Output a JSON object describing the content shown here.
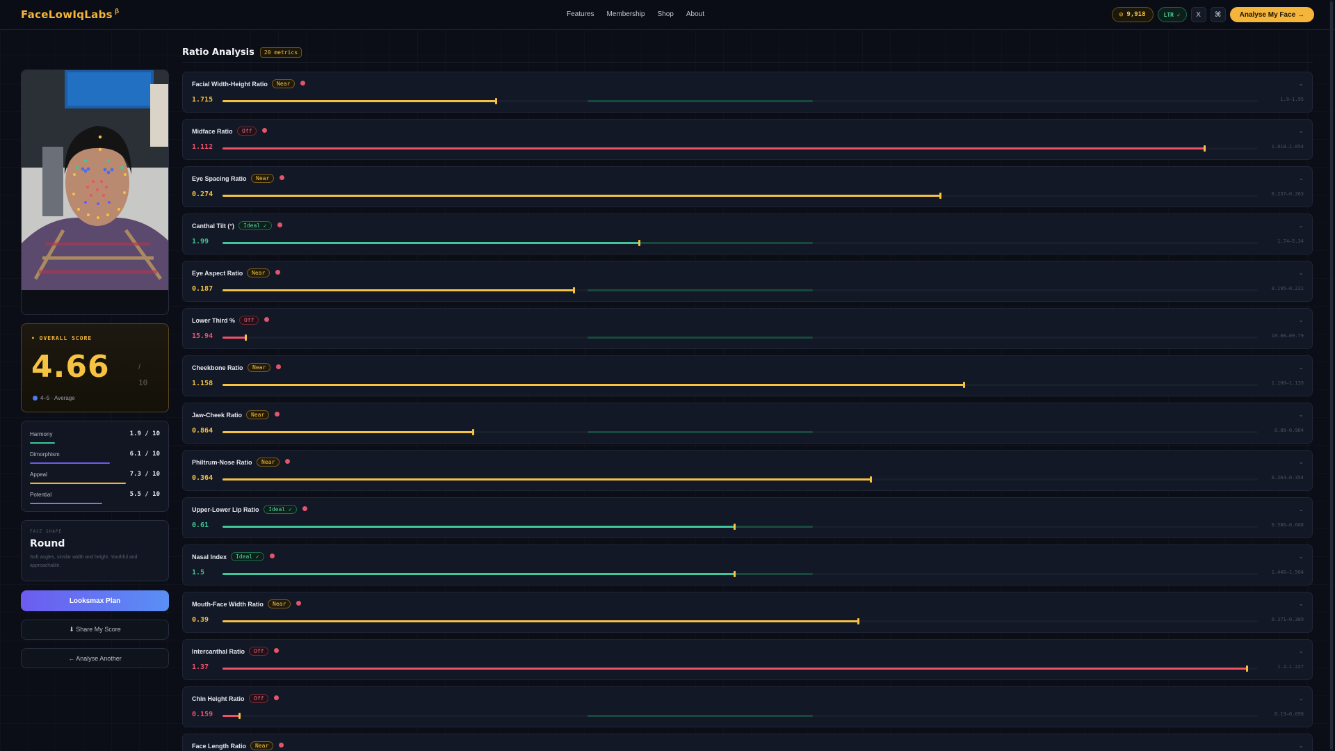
{
  "app": {
    "logo": "FaceLowIqLabs",
    "logo_suffix": "β",
    "nav": [
      "Features",
      "Membership",
      "Shop",
      "About"
    ],
    "coins": "◎ 9,918",
    "ltr": "LTR ✓",
    "x_icon": "X",
    "discord_icon": "⌘",
    "cta": "Analyse My Face →"
  },
  "sidebar": {
    "overall_label": "• OVERALL SCORE",
    "overall_score": "4.66",
    "overall_slash": "/",
    "overall_outof": "10",
    "overall_band": "4–5 · Average",
    "subscores": [
      {
        "name": "Harmony",
        "value": "1.9 / 10",
        "fraction": 0.19,
        "color": "#3fc79a"
      },
      {
        "name": "Dimorphism",
        "value": "6.1 / 10",
        "fraction": 0.61,
        "color": "#6c5cf0"
      },
      {
        "name": "Appeal",
        "value": "7.3 / 10",
        "fraction": 0.73,
        "color": "#f5b53a"
      },
      {
        "name": "Potential",
        "value": "5.5 / 10",
        "fraction": 0.55,
        "color": "#6c7df5"
      }
    ],
    "face_shape_label": "FACE SHAPE",
    "face_shape": "Round",
    "face_shape_desc": "Soft angles, similar width and height. Youthful and approachable.",
    "plan_button": "Looksmax Plan",
    "share_button": "⬇ Share My Score",
    "again_button": "← Analyse Another"
  },
  "main": {
    "title": "Ratio Analysis",
    "count": "20 metrics"
  },
  "metrics": [
    {
      "name": "Facial Width-Height Ratio",
      "badge": "Near",
      "status": "near",
      "value": "1.715",
      "range": "1.9–1.95",
      "position": 0.264
    },
    {
      "name": "Midface Ratio",
      "badge": "Off",
      "status": "off",
      "value": "1.112",
      "range": "1.018–1.054",
      "position": 0.948
    },
    {
      "name": "Eye Spacing Ratio",
      "badge": "Near",
      "status": "near",
      "value": "0.274",
      "range": "0.237–0.263",
      "position": 0.693
    },
    {
      "name": "Canthal Tilt (°)",
      "badge": "Ideal ✓",
      "status": "ideal",
      "value": "1.99",
      "range": "1.74–5.34",
      "position": 0.402
    },
    {
      "name": "Eye Aspect Ratio",
      "badge": "Near",
      "status": "near",
      "value": "0.187",
      "range": "0.195–0.231",
      "position": 0.339
    },
    {
      "name": "Lower Third %",
      "badge": "Off",
      "status": "off",
      "value": "15.94",
      "range": "19.00–09.79",
      "position": 0.022
    },
    {
      "name": "Cheekbone Ratio",
      "badge": "Near",
      "status": "near",
      "value": "1.158",
      "range": "1.108–1.139",
      "position": 0.716
    },
    {
      "name": "Jaw-Cheek Ratio",
      "badge": "Near",
      "status": "near",
      "value": "0.864",
      "range": "0.88–0.904",
      "position": 0.242
    },
    {
      "name": "Philtrum-Nose Ratio",
      "badge": "Near",
      "status": "near",
      "value": "0.364",
      "range": "0.264–0.354",
      "position": 0.626
    },
    {
      "name": "Upper-Lower Lip Ratio",
      "badge": "Ideal ✓",
      "status": "ideal",
      "value": "0.61",
      "range": "0.586–0.688",
      "position": 0.494
    },
    {
      "name": "Nasal Index",
      "badge": "Ideal ✓",
      "status": "ideal",
      "value": "1.5",
      "range": "1.446–1.564",
      "position": 0.494
    },
    {
      "name": "Mouth-Face Width Ratio",
      "badge": "Near",
      "status": "near",
      "value": "0.39",
      "range": "0.371–0.389",
      "position": 0.614
    },
    {
      "name": "Intercanthal Ratio",
      "badge": "Off",
      "status": "off",
      "value": "1.37",
      "range": "1.2–1.227",
      "position": 0.989
    },
    {
      "name": "Chin Height Ratio",
      "badge": "Off",
      "status": "off",
      "value": "0.159",
      "range": "0.19–0.098",
      "position": 0.016
    },
    {
      "name": "Face Length Ratio",
      "badge": "Near",
      "status": "near",
      "value": "",
      "range": "",
      "position": 0
    }
  ],
  "colors": {
    "near": "#f5c242",
    "off": "#f05068",
    "ideal": "#3fc79a",
    "accent": "#f5b53a"
  },
  "icons": {
    "chevron": "⌄"
  }
}
